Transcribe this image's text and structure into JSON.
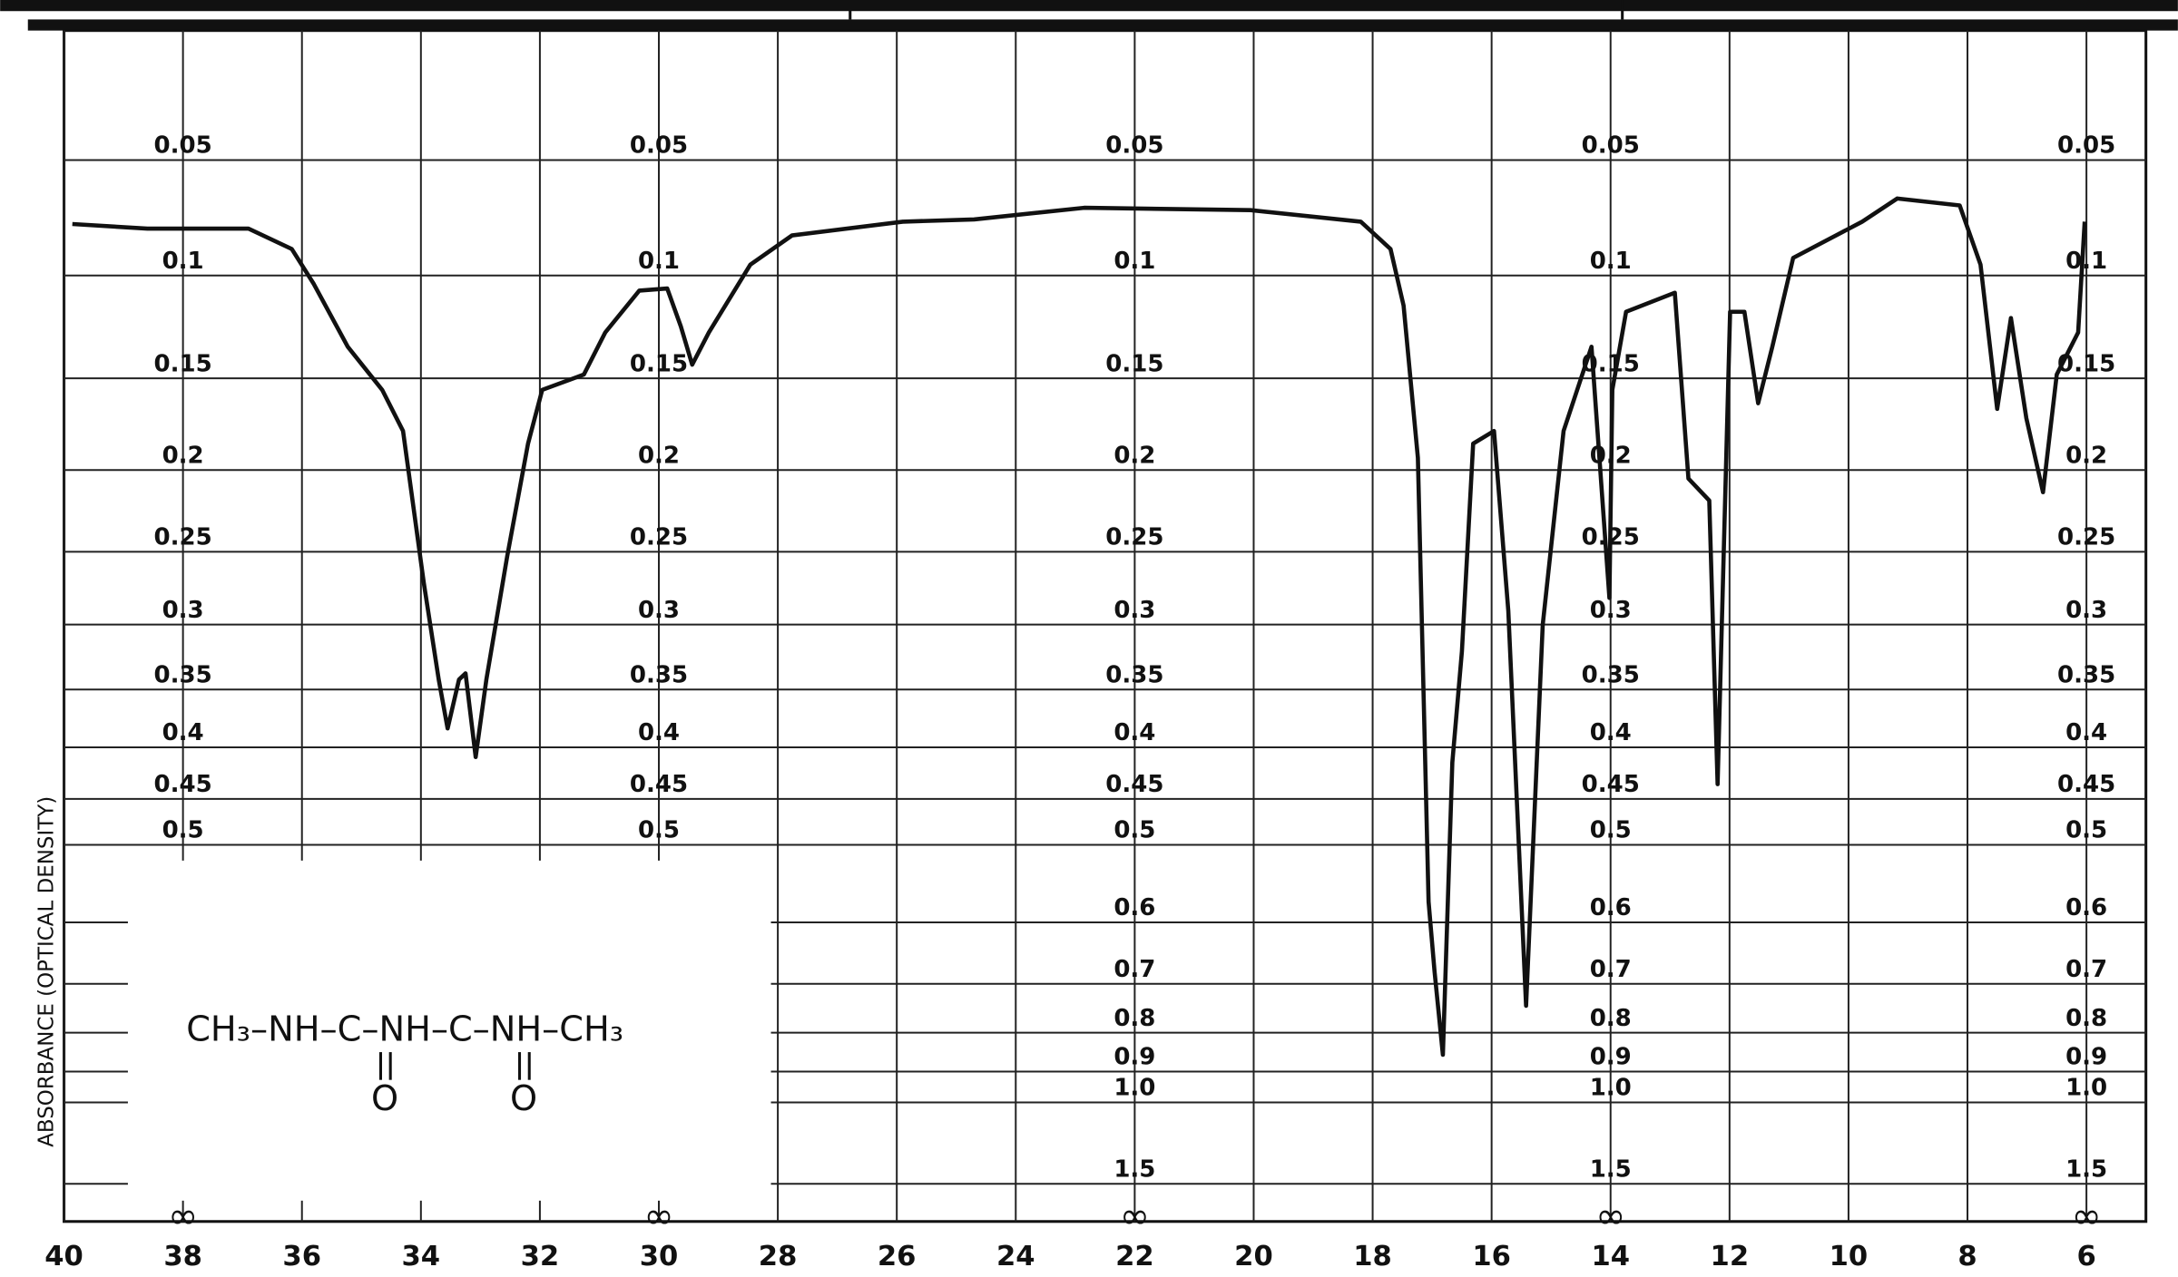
{
  "chart_data": {
    "type": "line",
    "y_label": "ABSORBANCE (OPTICAL DENSITY)",
    "yscale": "absorbance",
    "infinity_label": "∞",
    "annotation": "CH₃–NH–C–NH–C–NH–CH₃",
    "annotation_oxygen": "O",
    "xlim": [
      40,
      5
    ],
    "xticks": [
      40,
      38,
      36,
      34,
      32,
      30,
      28,
      26,
      24,
      22,
      20,
      18,
      16,
      14,
      12,
      10,
      8,
      6
    ],
    "yticks": [
      0.05,
      0.1,
      0.15,
      0.2,
      0.25,
      0.3,
      0.35,
      0.4,
      0.45,
      0.5,
      0.6,
      0.7,
      0.8,
      0.9,
      {
        "value": 1,
        "label": "1.0"
      },
      1.5
    ],
    "grid": true,
    "series": [
      {
        "color": "#111111",
        "x": [
          39.86,
          38.6,
          36.9,
          36.17,
          35.8,
          35.23,
          34.65,
          34.3,
          33.95,
          33.7,
          33.55,
          33.36,
          33.25,
          33.08,
          32.9,
          32.55,
          32.2,
          31.96,
          31.26,
          30.9,
          30.33,
          29.86,
          29.63,
          29.44,
          29.16,
          28.46,
          27.76,
          25.9,
          24.7,
          22.85,
          20.05,
          18.2,
          17.7,
          17.48,
          17.24,
          17.06,
          16.96,
          16.82,
          16.66,
          16.5,
          16.31,
          15.96,
          15.72,
          15.42,
          15.14,
          14.79,
          14.32,
          14.02,
          13.97,
          13.74,
          12.92,
          12.69,
          12.34,
          12.2,
          11.99,
          11.75,
          11.52,
          11.28,
          10.93,
          9.77,
          9.18,
          8.13,
          7.78,
          7.5,
          7.27,
          7.01,
          6.73,
          6.5,
          6.14,
          6.03
        ],
        "values": [
          0.077,
          0.079,
          0.079,
          0.088,
          0.104,
          0.134,
          0.156,
          0.178,
          0.271,
          0.342,
          0.383,
          0.342,
          0.337,
          0.409,
          0.342,
          0.253,
          0.185,
          0.156,
          0.148,
          0.127,
          0.107,
          0.106,
          0.124,
          0.143,
          0.127,
          0.095,
          0.082,
          0.076,
          0.075,
          0.07,
          0.071,
          0.076,
          0.088,
          0.114,
          0.193,
          0.571,
          0.678,
          0.854,
          0.414,
          0.32,
          0.185,
          0.178,
          0.29,
          0.742,
          0.3,
          0.178,
          0.134,
          0.281,
          0.156,
          0.117,
          0.108,
          0.205,
          0.218,
          0.435,
          0.117,
          0.117,
          0.163,
          0.134,
          0.092,
          0.076,
          0.066,
          0.069,
          0.095,
          0.166,
          0.12,
          0.171,
          0.213,
          0.148,
          0.127,
          0.076
        ]
      }
    ]
  }
}
